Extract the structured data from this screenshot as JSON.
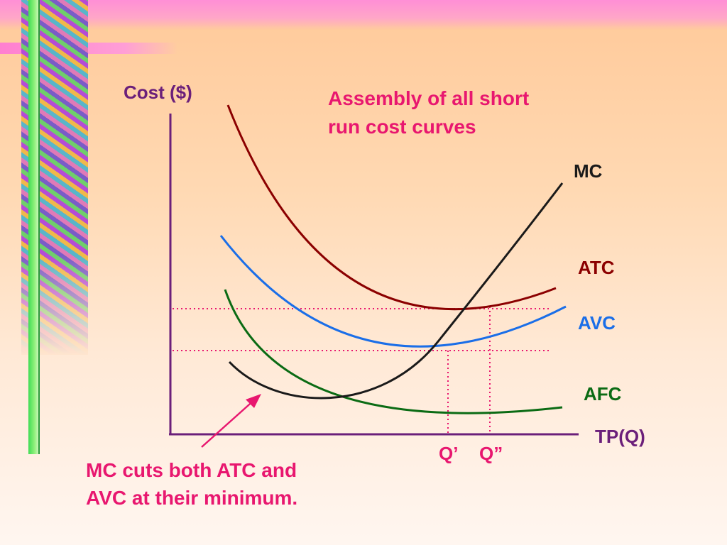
{
  "slide": {
    "title_lines": [
      "Assembly of all short",
      "run cost curves"
    ],
    "title_color": "#e8176f",
    "y_axis_label": "Cost ($)",
    "x_axis_label": "TP(Q)",
    "note_lines": [
      "MC cuts both ATC and",
      "AVC at their minimum."
    ],
    "note_color": "#e8176f"
  },
  "curves": [
    {
      "id": "mc",
      "label": "MC",
      "color": "#1a1a1a"
    },
    {
      "id": "atc",
      "label": "ATC",
      "color": "#8b0000"
    },
    {
      "id": "avc",
      "label": "AVC",
      "color": "#1a6ee8"
    },
    {
      "id": "afc",
      "label": "AFC",
      "color": "#0b6b14"
    }
  ],
  "markers": {
    "q_prime": "Q’",
    "q_double_prime": "Q”",
    "guide_color": "#e8176f",
    "axis_color": "#6b1f7a"
  }
}
